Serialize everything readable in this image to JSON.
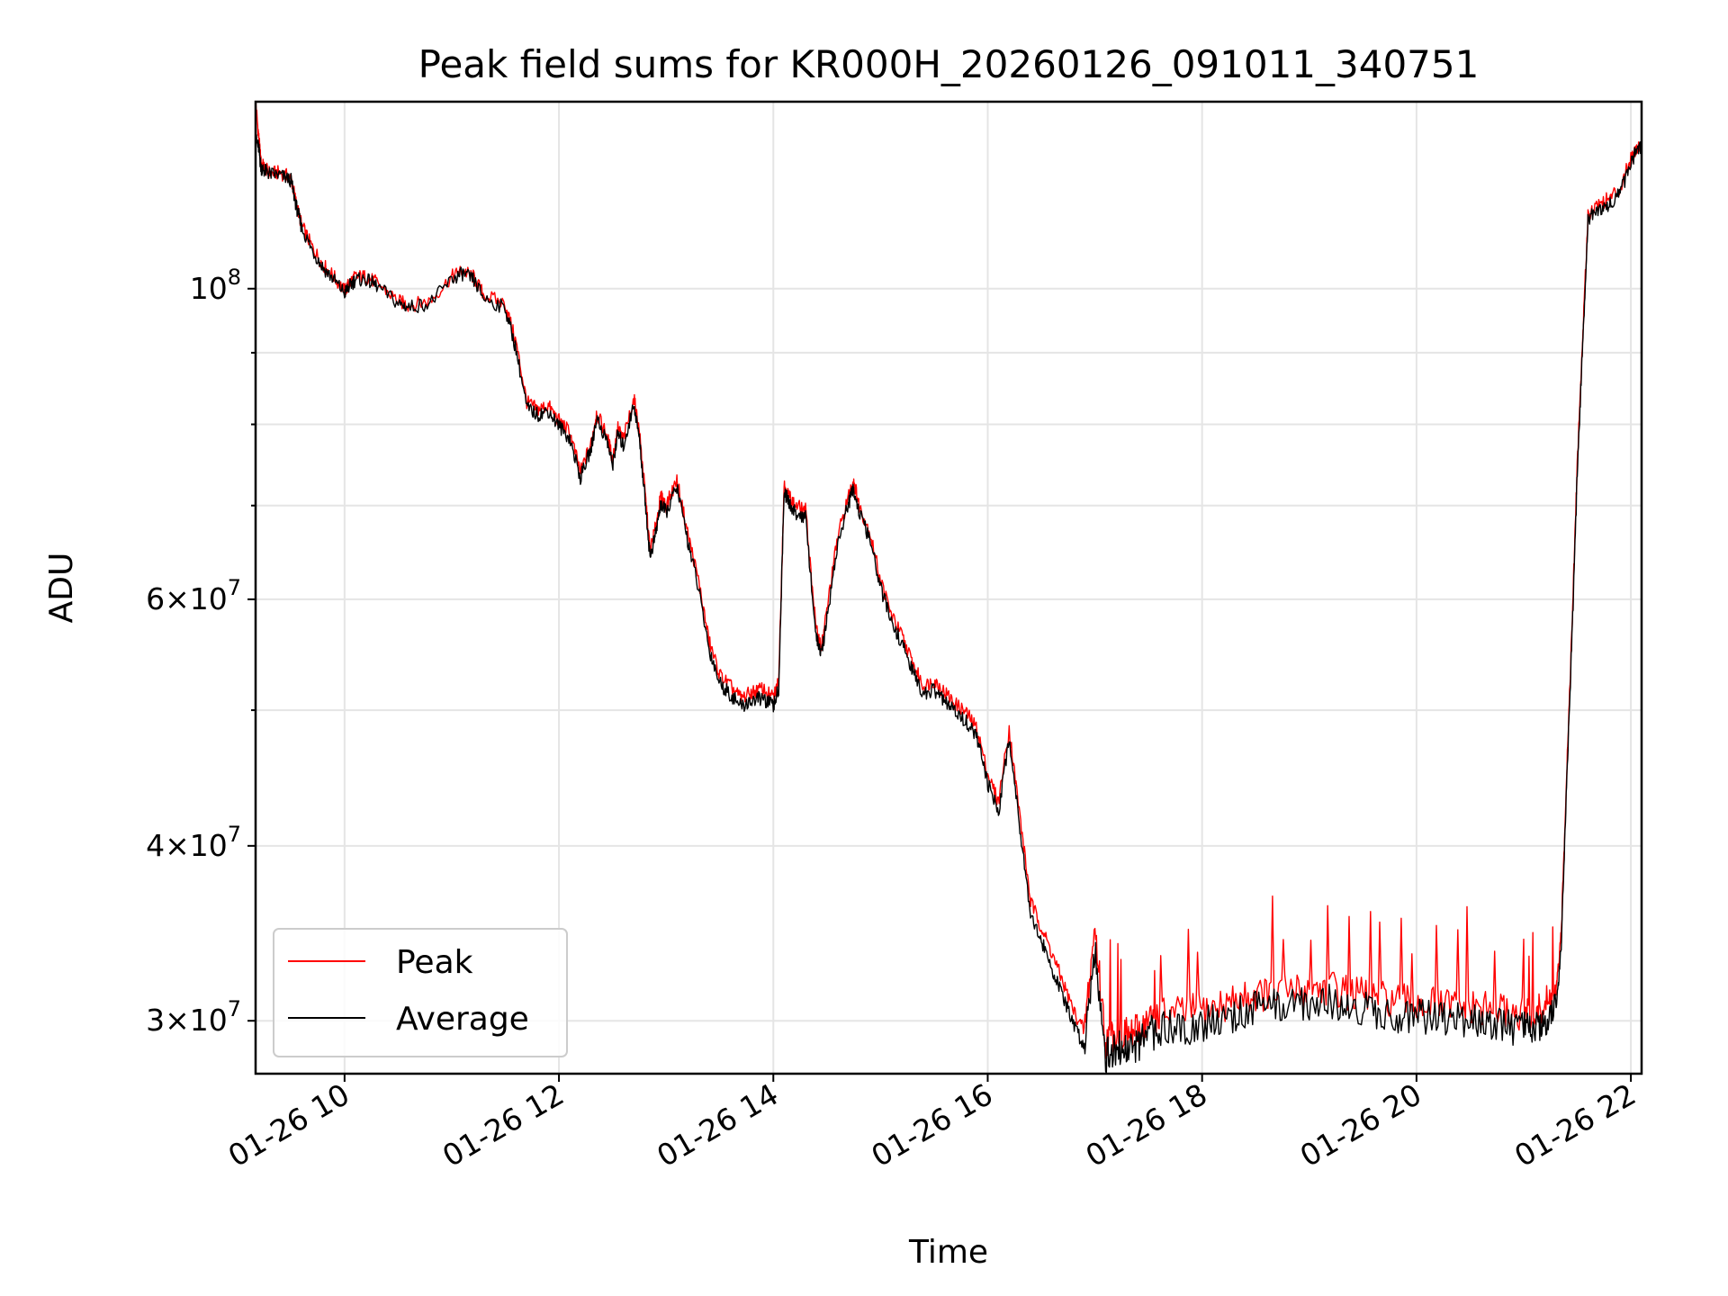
{
  "chart_data": {
    "type": "line",
    "title": "Peak field sums for KR000H_20260126_091011_340751",
    "xlabel": "Time",
    "ylabel": "ADU",
    "yscale": "log",
    "xlim_hours": [
      9.17,
      22.1
    ],
    "ylim": [
      27500000,
      136000000
    ],
    "grid": true,
    "legend_position": "lower-left",
    "x_ticks": [
      {
        "value": 10,
        "label": "01-26 10"
      },
      {
        "value": 12,
        "label": "01-26 12"
      },
      {
        "value": 14,
        "label": "01-26 14"
      },
      {
        "value": 16,
        "label": "01-26 16"
      },
      {
        "value": 18,
        "label": "01-26 18"
      },
      {
        "value": 20,
        "label": "01-26 20"
      },
      {
        "value": 22,
        "label": "01-26 22"
      }
    ],
    "y_major_ticks": [
      {
        "value": 100000000,
        "base": "10",
        "exp": "8"
      },
      {
        "value": 60000000,
        "base": "6×10",
        "exp": "7"
      },
      {
        "value": 40000000,
        "base": "4×10",
        "exp": "7"
      },
      {
        "value": 30000000,
        "base": "3×10",
        "exp": "7"
      }
    ],
    "y_minor_ticks": [
      90000000,
      80000000,
      70000000,
      50000000
    ],
    "series": [
      {
        "name": "Peak",
        "color": "#ff0000",
        "x": [
          9.17,
          9.2,
          9.22,
          9.25,
          9.3,
          9.4,
          9.5,
          9.55,
          9.6,
          9.7,
          9.8,
          9.9,
          10.0,
          10.05,
          10.1,
          10.2,
          10.3,
          10.5,
          10.6,
          10.8,
          11.0,
          11.1,
          11.2,
          11.3,
          11.5,
          11.6,
          11.7,
          11.8,
          11.9,
          12.0,
          12.1,
          12.2,
          12.3,
          12.35,
          12.45,
          12.5,
          12.55,
          12.6,
          12.7,
          12.75,
          12.8,
          12.85,
          12.9,
          12.95,
          13.0,
          13.1,
          13.2,
          13.3,
          13.4,
          13.5,
          13.6,
          13.7,
          13.8,
          13.9,
          14.0,
          14.05,
          14.1,
          14.15,
          14.2,
          14.3,
          14.4,
          14.45,
          14.5,
          14.6,
          14.7,
          14.75,
          14.8,
          14.9,
          15.0,
          15.1,
          15.2,
          15.3,
          15.4,
          15.5,
          15.6,
          15.7,
          15.8,
          15.9,
          16.0,
          16.1,
          16.2,
          16.3,
          16.4,
          16.5,
          16.6,
          16.7,
          16.8,
          16.9,
          17.0,
          17.1,
          17.2,
          17.3,
          17.4,
          17.5,
          17.6,
          17.8,
          18.0,
          18.2,
          18.4,
          18.6,
          18.8,
          19.0,
          19.2,
          19.4,
          19.6,
          19.8,
          20.0,
          20.2,
          20.4,
          20.6,
          20.8,
          21.0,
          21.1,
          21.2,
          21.3,
          21.35,
          21.4,
          21.45,
          21.5,
          21.55,
          21.6,
          21.7,
          21.8,
          21.9,
          22.0,
          22.05,
          22.1
        ],
        "values": [
          136000000,
          128000000,
          123000000,
          122000000,
          121000000,
          121000000,
          120000000,
          115000000,
          111000000,
          107000000,
          104000000,
          102000000,
          99600000,
          101000000,
          102000000,
          102000000,
          101000000,
          98000000,
          97300000,
          98000000,
          102000000,
          103000000,
          102000000,
          99000000,
          97500000,
          91500000,
          83000000,
          82000000,
          82500000,
          80500000,
          79000000,
          74000000,
          77500000,
          81500000,
          78500000,
          75500000,
          79500000,
          78000000,
          83500000,
          79000000,
          72000000,
          65000000,
          67500000,
          71000000,
          70000000,
          73000000,
          67000000,
          62000000,
          56000000,
          53000000,
          52000000,
          51000000,
          51500000,
          51800000,
          51000000,
          52500000,
          72500000,
          71000000,
          70000000,
          69500000,
          57000000,
          55500000,
          59000000,
          66500000,
          71000000,
          73000000,
          70000000,
          67000000,
          62000000,
          58500000,
          56500000,
          54000000,
          52000000,
          52500000,
          51500000,
          50500000,
          49800000,
          48500000,
          45000000,
          43000000,
          48500000,
          42000000,
          36500000,
          35000000,
          33500000,
          32000000,
          30500000,
          29500000,
          35000000,
          29000000,
          29500000,
          29300000,
          29500000,
          30000000,
          30300000,
          30400000,
          30500000,
          30800000,
          31200000,
          31400000,
          31500000,
          31600000,
          31700000,
          31400000,
          31200000,
          31000000,
          30900000,
          30800000,
          30700000,
          30600000,
          30500000,
          30300000,
          30200000,
          30800000,
          31300000,
          34500000,
          45000000,
          57000000,
          75000000,
          92000000,
          113000000,
          115000000,
          116000000,
          118000000,
          124000000,
          126000000,
          126500000
        ]
      },
      {
        "name": "Average",
        "color": "#000000",
        "x": [
          9.17,
          9.2,
          9.22,
          9.25,
          9.3,
          9.4,
          9.5,
          9.55,
          9.6,
          9.7,
          9.8,
          9.9,
          10.0,
          10.05,
          10.1,
          10.2,
          10.3,
          10.5,
          10.6,
          10.8,
          11.0,
          11.1,
          11.2,
          11.3,
          11.5,
          11.6,
          11.7,
          11.8,
          11.9,
          12.0,
          12.1,
          12.2,
          12.3,
          12.35,
          12.45,
          12.5,
          12.55,
          12.6,
          12.7,
          12.75,
          12.8,
          12.85,
          12.9,
          12.95,
          13.0,
          13.1,
          13.2,
          13.3,
          13.4,
          13.5,
          13.6,
          13.7,
          13.8,
          13.9,
          14.0,
          14.05,
          14.1,
          14.15,
          14.2,
          14.3,
          14.4,
          14.45,
          14.5,
          14.6,
          14.7,
          14.75,
          14.8,
          14.9,
          15.0,
          15.1,
          15.2,
          15.3,
          15.4,
          15.5,
          15.6,
          15.7,
          15.8,
          15.9,
          16.0,
          16.1,
          16.2,
          16.3,
          16.4,
          16.5,
          16.6,
          16.7,
          16.8,
          16.9,
          17.0,
          17.1,
          17.2,
          17.3,
          17.4,
          17.5,
          17.6,
          17.8,
          18.0,
          18.2,
          18.4,
          18.6,
          18.8,
          19.0,
          19.2,
          19.4,
          19.6,
          19.8,
          20.0,
          20.2,
          20.4,
          20.6,
          20.8,
          21.0,
          21.1,
          21.2,
          21.3,
          21.35,
          21.4,
          21.45,
          21.5,
          21.55,
          21.6,
          21.7,
          21.8,
          21.9,
          22.0,
          22.05,
          22.1
        ],
        "values": [
          128000000,
          126000000,
          122000000,
          121500000,
          120800000,
          120500000,
          119500000,
          114500000,
          110500000,
          106500000,
          103500000,
          101500000,
          99300000,
          100500000,
          101500000,
          101500000,
          100500000,
          97600000,
          97000000,
          97700000,
          101500000,
          102500000,
          101500000,
          98500000,
          96800000,
          90500000,
          82200000,
          81300000,
          81800000,
          79800000,
          78200000,
          73300000,
          76800000,
          80800000,
          77800000,
          74800000,
          78800000,
          77200000,
          82700000,
          78200000,
          71200000,
          64300000,
          66700000,
          70200000,
          69200000,
          72200000,
          66200000,
          61200000,
          55300000,
          52300000,
          51300000,
          50300000,
          50800000,
          51000000,
          50300000,
          51800000,
          71700000,
          70200000,
          69200000,
          68700000,
          56300000,
          54800000,
          58200000,
          65700000,
          70200000,
          72000000,
          69200000,
          66200000,
          61200000,
          57800000,
          55800000,
          53300000,
          51300000,
          51700000,
          50700000,
          49800000,
          49100000,
          47800000,
          44300000,
          42300000,
          47800000,
          41300000,
          35800000,
          34200000,
          32700000,
          31200000,
          29800000,
          28800000,
          34000000,
          28300000,
          28700000,
          28600000,
          28800000,
          29300000,
          29600000,
          29700000,
          29800000,
          30100000,
          30500000,
          30700000,
          30800000,
          30900000,
          31000000,
          30700000,
          30500000,
          30300000,
          30200000,
          30100000,
          30000000,
          29900000,
          29800000,
          29600000,
          29500000,
          30100000,
          30600000,
          33800000,
          44200000,
          56200000,
          74000000,
          91000000,
          112000000,
          114000000,
          115000000,
          117000000,
          123000000,
          125500000,
          126000000
        ]
      }
    ]
  }
}
